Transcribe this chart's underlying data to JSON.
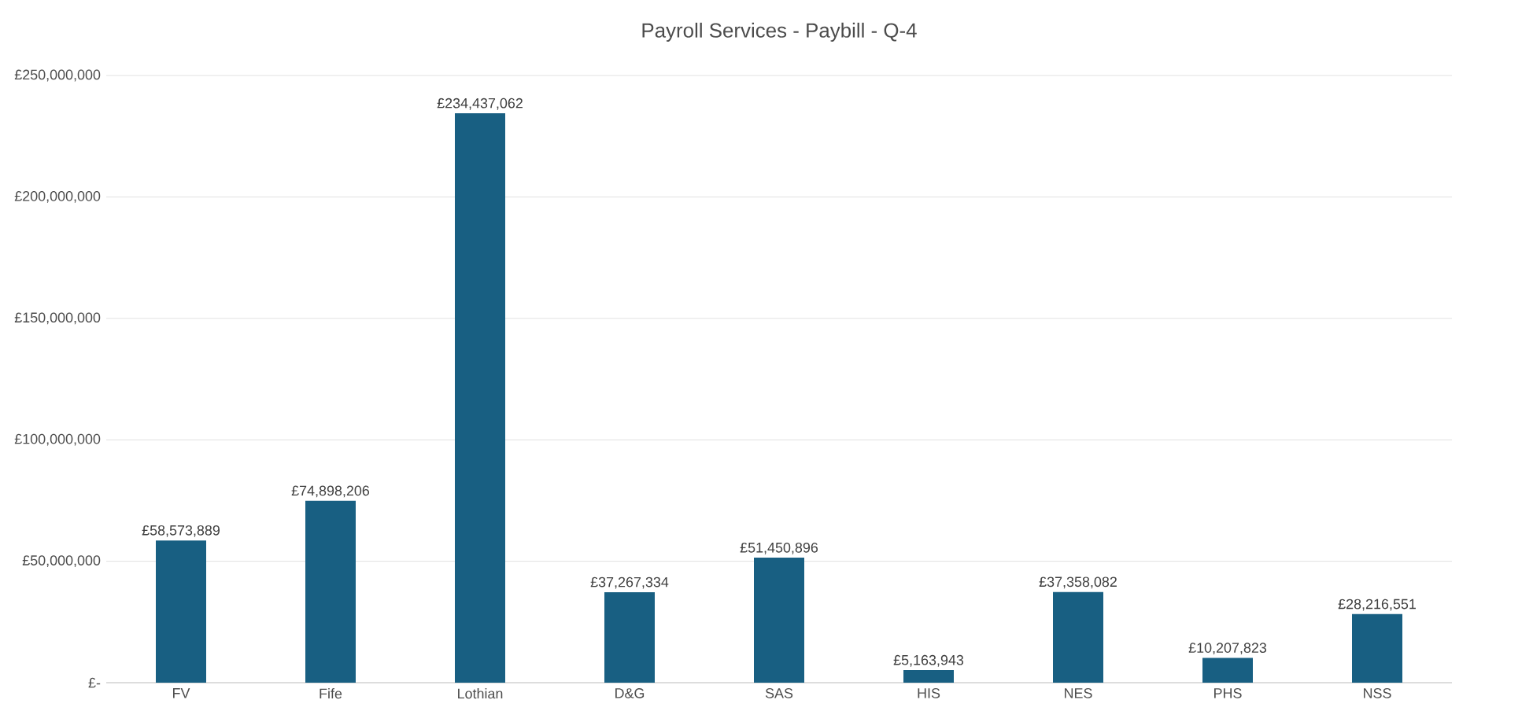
{
  "chart_data": {
    "type": "bar",
    "title": "Payroll Services - Paybill  -  Q-4",
    "categories": [
      "FV",
      "Fife",
      "Lothian",
      "D&G",
      "SAS",
      "HIS",
      "NES",
      "PHS",
      "NSS"
    ],
    "values": [
      58573889,
      74898206,
      234437062,
      37267334,
      51450896,
      5163943,
      37358082,
      10207823,
      28216551
    ],
    "value_labels": [
      "£58,573,889",
      "£74,898,206",
      "£234,437,062",
      "£37,267,334",
      "£51,450,896",
      "£5,163,943",
      "£37,358,082",
      "£10,207,823",
      "£28,216,551"
    ],
    "color": "#185f82",
    "ylim": [
      0,
      250000000
    ],
    "yticks": [
      {
        "value": 0,
        "label": "£-"
      },
      {
        "value": 50000000,
        "label": "£50,000,000"
      },
      {
        "value": 100000000,
        "label": "£100,000,000"
      },
      {
        "value": 150000000,
        "label": "£150,000,000"
      },
      {
        "value": 200000000,
        "label": "£200,000,000"
      },
      {
        "value": 250000000,
        "label": "£250,000,000"
      }
    ],
    "grid": "y"
  }
}
